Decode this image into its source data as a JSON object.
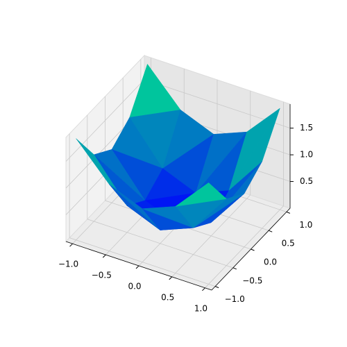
{
  "chart_data": {
    "type": "surface3d",
    "x": [
      -1,
      -0.5,
      0,
      0.5,
      1
    ],
    "y": [
      -1,
      -0.5,
      0,
      0.5,
      1
    ],
    "z": [
      [
        1.9,
        1.25,
        1.0,
        1.25,
        1.9
      ],
      [
        1.25,
        0.5,
        0.25,
        0.5,
        1.25
      ],
      [
        1.0,
        0.25,
        0.0,
        0.25,
        1.0
      ],
      [
        1.25,
        0.5,
        0.25,
        0.5,
        1.25
      ],
      [
        1.9,
        1.25,
        1.0,
        1.25,
        1.9
      ]
    ],
    "colors": [
      "#0000ff",
      "#00ff80"
    ],
    "xlim": [
      -1.1,
      1.1
    ],
    "ylim": [
      -1.1,
      1.1
    ],
    "zlim": [
      0,
      1.95
    ],
    "xticks": [
      {
        "value": -1,
        "label": "−1.0"
      },
      {
        "value": -0.5,
        "label": "−0.5"
      },
      {
        "value": 0,
        "label": "0.0"
      },
      {
        "value": 0.5,
        "label": "0.5"
      },
      {
        "value": 1,
        "label": "1.0"
      }
    ],
    "yticks": [
      {
        "value": -1,
        "label": "−1.0"
      },
      {
        "value": -0.5,
        "label": "−0.5"
      },
      {
        "value": 0,
        "label": "0.0"
      },
      {
        "value": 0.5,
        "label": "0.5"
      },
      {
        "value": 1,
        "label": "1.0"
      }
    ],
    "zticks": [
      0.5,
      {
        "value": 1,
        "label": "1.0"
      },
      {
        "value": 1.5,
        "label": "1.5"
      }
    ],
    "grid": true
  }
}
